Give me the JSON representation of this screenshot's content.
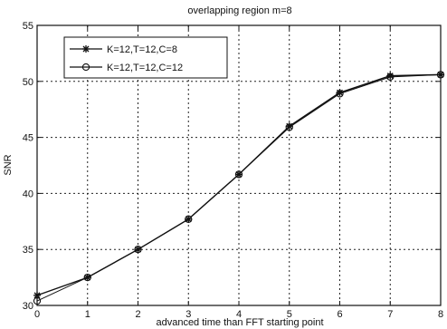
{
  "chart_data": {
    "type": "line",
    "title": "overlapping region m=8",
    "xlabel": "advanced time than FFT starting point",
    "ylabel": "SNR",
    "xlim": [
      0,
      8
    ],
    "ylim": [
      30,
      55
    ],
    "xticks": [
      0,
      1,
      2,
      3,
      4,
      5,
      6,
      7,
      8
    ],
    "yticks": [
      30,
      35,
      40,
      45,
      50,
      55
    ],
    "grid": true,
    "legend_position": "top-left",
    "x": [
      0,
      1,
      2,
      3,
      4,
      5,
      6,
      7,
      8
    ],
    "series": [
      {
        "name": "K=12,T=12,C=8",
        "marker": "star",
        "values": [
          30.9,
          32.5,
          35.0,
          37.7,
          41.7,
          46.0,
          49.0,
          50.5,
          50.6
        ]
      },
      {
        "name": "K=12,T=12,C=12",
        "marker": "circle",
        "values": [
          30.4,
          32.5,
          35.0,
          37.7,
          41.7,
          45.9,
          48.9,
          50.4,
          50.6
        ]
      }
    ]
  }
}
